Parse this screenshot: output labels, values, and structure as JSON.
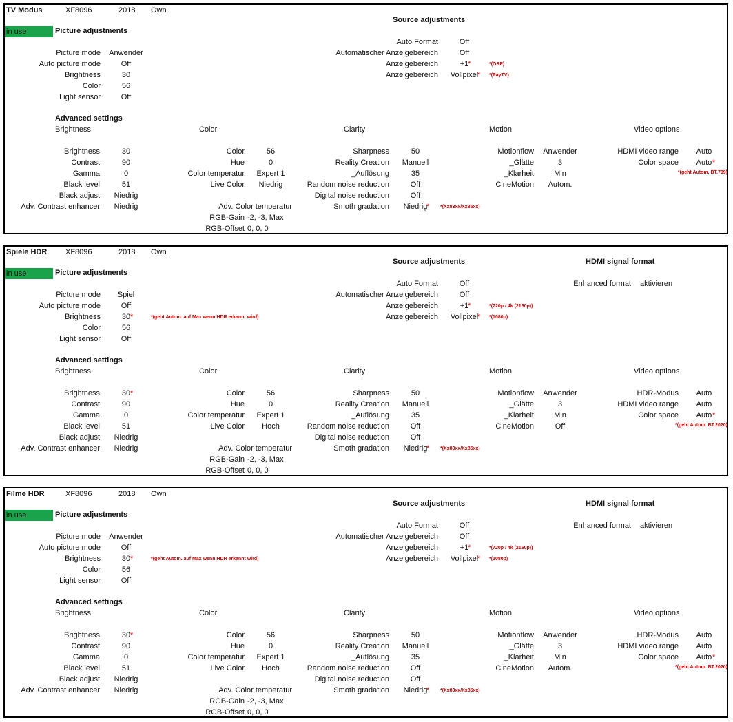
{
  "labels": {
    "in_use": "in use",
    "picture_adjustments": "Picture adjustments",
    "source_adjustments": "Source adjustments",
    "hdmi_signal_format": "HDMI signal format",
    "advanced_settings": "Advanced settings",
    "brightness_group": "Brightness",
    "color_group": "Color",
    "clarity_group": "Clarity",
    "motion_group": "Motion",
    "video_options_group": "Video options",
    "picture_mode": "Picture mode",
    "auto_picture_mode": "Auto picture mode",
    "brightness": "Brightness",
    "color": "Color",
    "light_sensor": "Light sensor",
    "auto_format": "Auto Format",
    "auto_anzeigebereich": "Automatischer Anzeigebereich",
    "anzeigebereich": "Anzeigebereich",
    "enhanced_format": "Enhanced format",
    "contrast": "Contrast",
    "gamma": "Gamma",
    "black_level": "Black level",
    "black_adjust": "Black adjust",
    "adv_contrast": "Adv. Contrast enhancer",
    "hue": "Hue",
    "color_temperatur": "Color temperatur",
    "live_color": "Live Color",
    "adv_color_temperatur": "Adv. Color temperatur",
    "rgb_gain": "RGB-Gain",
    "rgb_offset": "RGB-Offset",
    "sharpness": "Sharpness",
    "reality_creation": "Reality Creation",
    "aufloesung": "_Auflösung",
    "random_noise": "Random noise reduction",
    "digital_noise": "Digital noise reduction",
    "smoth_gradation": "Smoth gradation",
    "motionflow": "Motionflow",
    "glaette": "_Glätte",
    "klarheit": "_Klarheit",
    "cinemotion": "CineMotion",
    "hdr_modus": "HDR-Modus",
    "hdmi_video_range": "HDMI video range",
    "color_space": "Color space",
    "star": "*"
  },
  "panels": [
    {
      "name": "TV Modus",
      "model": "XF8096",
      "year": "2018",
      "owner": "Own",
      "picture": {
        "mode": "Anwender",
        "auto_mode": "Off",
        "brightness": "30",
        "brightness_note": "",
        "color": "56",
        "light_sensor": "Off"
      },
      "source": {
        "auto_format": "Off",
        "auto_anzeige": "Off",
        "anzeige1": "+1",
        "anzeige1_note": "*(ÖRF)",
        "anzeige2": "Vollpixel",
        "anzeige2_note": "*(PayTV)"
      },
      "hdmi": null,
      "adv_brightness": {
        "brightness": "30",
        "contrast": "90",
        "gamma": "0",
        "black_level": "51",
        "black_adjust": "Niedrig",
        "adv_contrast": "Niedrig"
      },
      "adv_color": {
        "color": "56",
        "hue": "0",
        "color_temperatur": "Expert 1",
        "live_color": "Niedrig",
        "rgb_gain": "-2, -3, Max",
        "rgb_offset": "0, 0, 0"
      },
      "clarity": {
        "sharpness": "50",
        "reality_creation": "Manuell",
        "aufloesung": "35",
        "random_noise": "Off",
        "digital_noise": "Off",
        "smoth_gradation": "Niedrig",
        "smoth_note": "*(Xx83xx/Xx85xx)"
      },
      "motion": {
        "motionflow": "Anwender",
        "glaette": "3",
        "klarheit": "Min",
        "cinemotion": "Autom."
      },
      "video": {
        "hdr_modus": null,
        "hdmi_video_range": "Auto",
        "color_space": "Auto",
        "color_space_note": "*(geht Autom. BT.709)"
      }
    },
    {
      "name": "Spiele HDR",
      "model": "XF8096",
      "year": "2018",
      "owner": "Own",
      "picture": {
        "mode": "Spiel",
        "auto_mode": "Off",
        "brightness": "30",
        "brightness_note": "*(geht Autom. auf Max wenn HDR erkannt wird)",
        "color": "56",
        "light_sensor": "Off"
      },
      "source": {
        "auto_format": "Off",
        "auto_anzeige": "Off",
        "anzeige1": "+1",
        "anzeige1_note": "*(720p / 4k (2160p))",
        "anzeige2": "Vollpixel",
        "anzeige2_note": "*(1080p)"
      },
      "hdmi": {
        "enhanced_format": "aktivieren"
      },
      "adv_brightness": {
        "brightness": "30",
        "contrast": "90",
        "gamma": "0",
        "black_level": "51",
        "black_adjust": "Niedrig",
        "adv_contrast": "Niedrig"
      },
      "adv_color": {
        "color": "56",
        "hue": "0",
        "color_temperatur": "Expert 1",
        "live_color": "Hoch",
        "rgb_gain": "-2, -3, Max",
        "rgb_offset": "0, 0, 0"
      },
      "clarity": {
        "sharpness": "50",
        "reality_creation": "Manuell",
        "aufloesung": "35",
        "random_noise": "Off",
        "digital_noise": "Off",
        "smoth_gradation": "Niedrig",
        "smoth_note": "*(Xx83xx/Xx85xx)"
      },
      "motion": {
        "motionflow": "Anwender",
        "glaette": "3",
        "klarheit": "Min",
        "cinemotion": "Off"
      },
      "video": {
        "hdr_modus": "Auto",
        "hdmi_video_range": "Auto",
        "color_space": "Auto",
        "color_space_note": "*(geht Autom. BT.2020)"
      }
    },
    {
      "name": "Filme HDR",
      "model": "XF8096",
      "year": "2018",
      "owner": "Own",
      "picture": {
        "mode": "Anwender",
        "auto_mode": "Off",
        "brightness": "30",
        "brightness_note": "*(geht Autom. auf Max wenn HDR erkannt wird)",
        "color": "56",
        "light_sensor": "Off"
      },
      "source": {
        "auto_format": "Off",
        "auto_anzeige": "Off",
        "anzeige1": "+1",
        "anzeige1_note": "*(720p / 4k (2160p))",
        "anzeige2": "Vollpixel",
        "anzeige2_note": "*(1080p)"
      },
      "hdmi": {
        "enhanced_format": "aktivieren"
      },
      "adv_brightness": {
        "brightness": "30",
        "contrast": "90",
        "gamma": "0",
        "black_level": "51",
        "black_adjust": "Niedrig",
        "adv_contrast": "Niedrig"
      },
      "adv_color": {
        "color": "56",
        "hue": "0",
        "color_temperatur": "Expert 1",
        "live_color": "Hoch",
        "rgb_gain": "-2, -3, Max",
        "rgb_offset": "0, 0, 0"
      },
      "clarity": {
        "sharpness": "50",
        "reality_creation": "Manuell",
        "aufloesung": "35",
        "random_noise": "Off",
        "digital_noise": "Off",
        "smoth_gradation": "Niedrig",
        "smoth_note": "*(Xx83xx/Xx85xx)"
      },
      "motion": {
        "motionflow": "Anwender",
        "glaette": "3",
        "klarheit": "Min",
        "cinemotion": "Autom."
      },
      "video": {
        "hdr_modus": "Auto",
        "hdmi_video_range": "Auto",
        "color_space": "Auto",
        "color_space_note": "*(geht Autom. BT.2020)"
      }
    }
  ]
}
